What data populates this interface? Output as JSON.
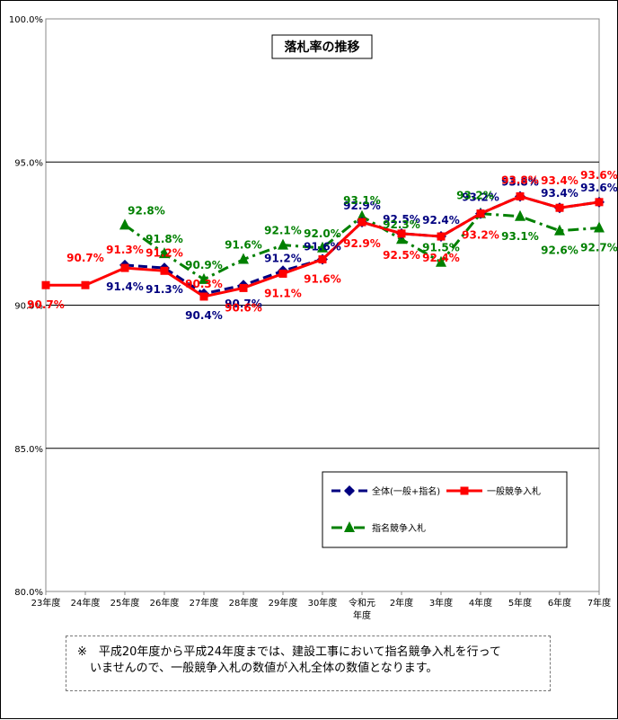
{
  "chart_data": {
    "type": "line",
    "title": "落札率の推移",
    "categories": [
      "23年度",
      "24年度",
      "25年度",
      "26年度",
      "27年度",
      "28年度",
      "29年度",
      "30年度",
      "令和元",
      "2年度",
      "3年度",
      "4年度",
      "5年度",
      "6年度",
      "7年度"
    ],
    "xlabel_extra": "年度",
    "ylim": [
      80.0,
      100.0
    ],
    "yticks": [
      "80.0%",
      "85.0%",
      "90.0%",
      "95.0%",
      "100.0%"
    ],
    "ytick_values": [
      80,
      85,
      90,
      95,
      100
    ],
    "grid": true,
    "legend_position": "bottom-right",
    "series": [
      {
        "name": "全体(一般+指名)",
        "color": "#000080",
        "style": "dashed",
        "marker": "diamond",
        "values": [
          null,
          null,
          91.4,
          91.3,
          90.4,
          90.7,
          91.2,
          91.6,
          92.9,
          92.5,
          92.4,
          93.2,
          93.8,
          93.4,
          93.6
        ],
        "labels": [
          "",
          "",
          "91.4%",
          "91.3%",
          "90.4%",
          "90.7%",
          "91.2%",
          "91.6%",
          "92.9%",
          "92.5%",
          "92.4%",
          "93.2%",
          "93.8%",
          "93.4%",
          "93.6%"
        ]
      },
      {
        "name": "一般競争入札",
        "color": "#FF0000",
        "style": "solid",
        "marker": "square",
        "values": [
          90.7,
          90.7,
          91.3,
          91.2,
          90.3,
          90.6,
          91.1,
          91.6,
          92.9,
          92.5,
          92.4,
          93.2,
          93.8,
          93.4,
          93.6
        ],
        "labels": [
          "90.7%",
          "90.7%",
          "91.3%",
          "91.2%",
          "90.3%",
          "90.6%",
          "91.1%",
          "91.6%",
          "92.9%",
          "92.5%",
          "92.4%",
          "93.2%",
          "93.8%",
          "93.4%",
          "93.6%"
        ]
      },
      {
        "name": "指名競争入札",
        "color": "#008000",
        "style": "dashdot",
        "marker": "triangle",
        "values": [
          null,
          null,
          92.8,
          91.8,
          90.9,
          91.6,
          92.1,
          92.0,
          93.1,
          92.3,
          91.5,
          93.2,
          93.1,
          92.6,
          92.7
        ],
        "labels": [
          "",
          "",
          "92.8%",
          "91.8%",
          "90.9%",
          "91.6%",
          "92.1%",
          "92.0%",
          "93.1%",
          "92.3%",
          "91.5%",
          "93.2%",
          "93.1%",
          "92.6%",
          "92.7%"
        ]
      }
    ]
  },
  "note": {
    "line1": "※　平成20年度から平成24年度までは、建設工事において指名競争入札を行って",
    "line2": "いませんので、一般競争入札の数値が入札全体の数値となります。"
  }
}
